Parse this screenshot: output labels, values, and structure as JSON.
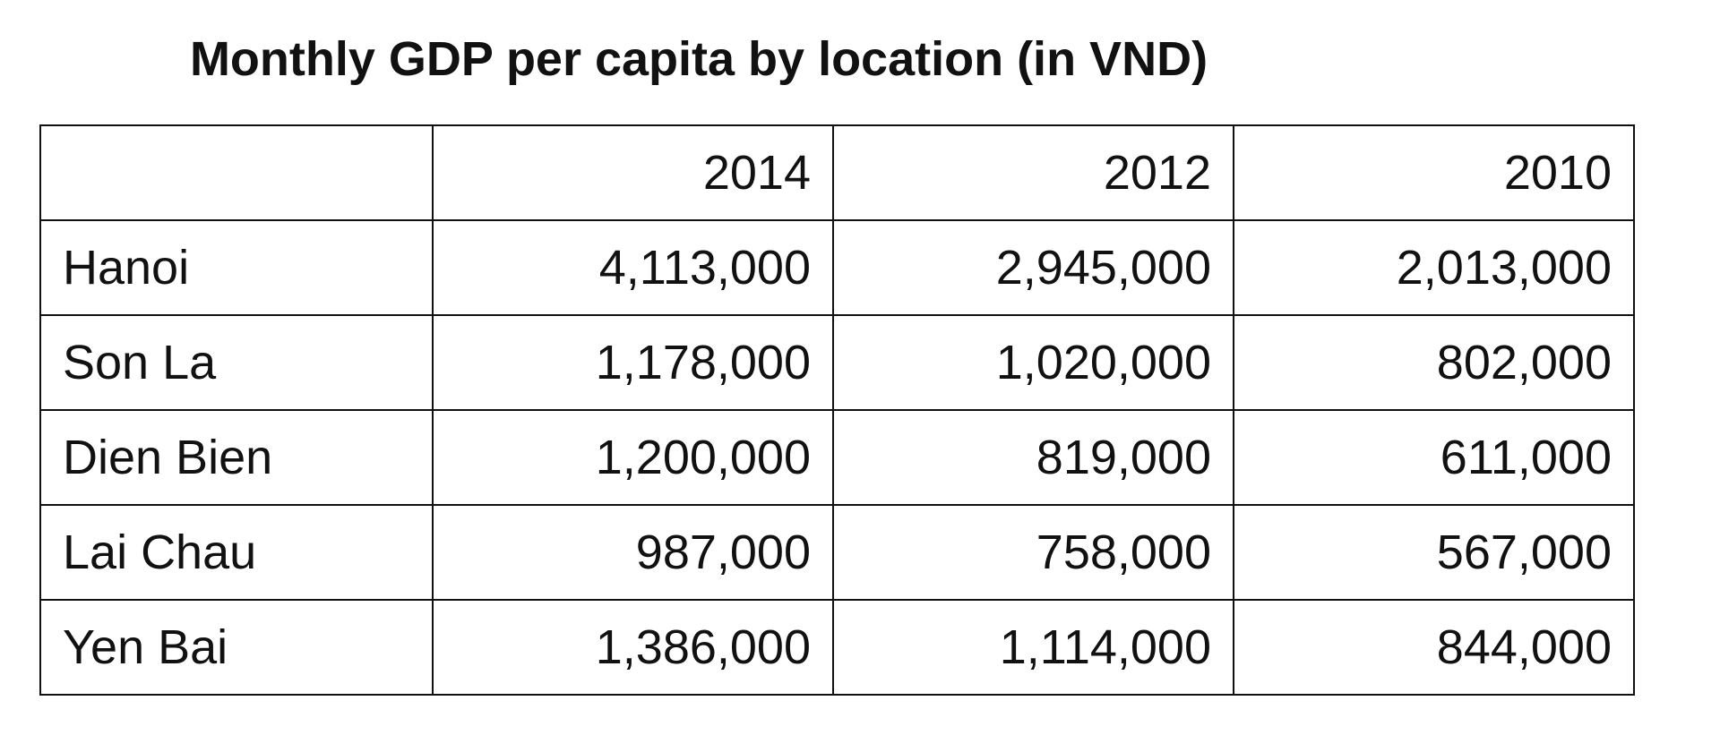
{
  "chart_data": {
    "type": "table",
    "title": "Monthly GDP per capita by location (in VND)",
    "columns": [
      "",
      "2014",
      "2012",
      "2010"
    ],
    "rows": [
      {
        "location": "Hanoi",
        "values": [
          "4,113,000",
          "2,945,000",
          "2,013,000"
        ]
      },
      {
        "location": "Son La",
        "values": [
          "1,178,000",
          "1,020,000",
          "802,000"
        ]
      },
      {
        "location": "Dien Bien",
        "values": [
          "1,200,000",
          "819,000",
          "611,000"
        ]
      },
      {
        "location": "Lai Chau",
        "values": [
          "987,000",
          "758,000",
          "567,000"
        ]
      },
      {
        "location": "Yen Bai",
        "values": [
          "1,386,000",
          "1,114,000",
          "844,000"
        ]
      }
    ]
  }
}
